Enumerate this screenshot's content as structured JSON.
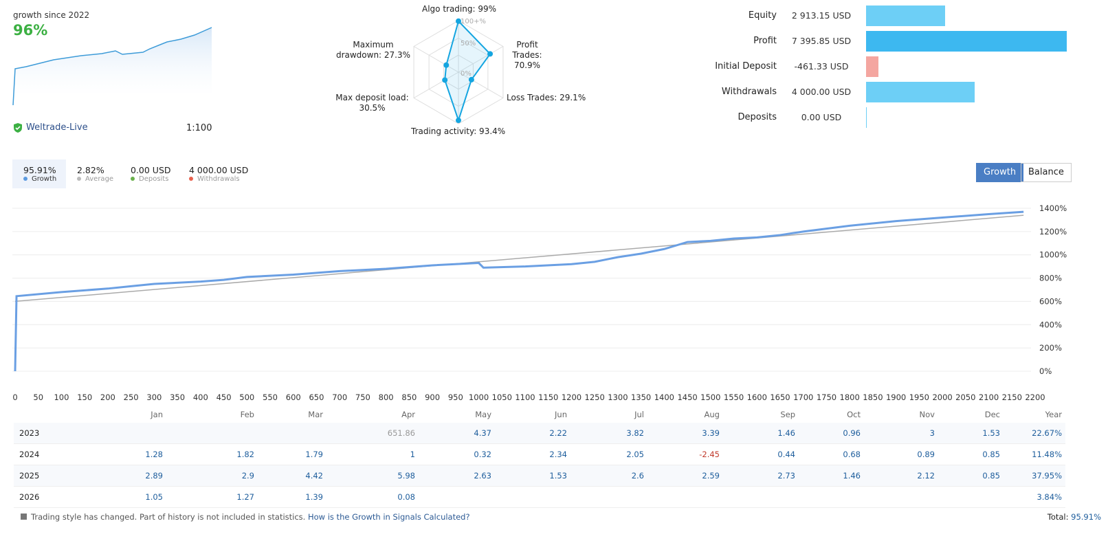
{
  "summary": {
    "growth_label": "growth since 2022",
    "growth_value": "96%",
    "broker": "Weltrade-Live",
    "leverage": "1:100"
  },
  "radar": {
    "axes": [
      {
        "label": "Algo trading: 99%",
        "value": 99
      },
      {
        "label": "Profit Trades: 70.9%",
        "value": 70.9
      },
      {
        "label": "Loss Trades: 29.1%",
        "value": 29.1
      },
      {
        "label": "Trading activity: 93.4%",
        "value": 93.4
      },
      {
        "label": "Max deposit load: 30.5%",
        "value": 30.5
      },
      {
        "label": "Maximum drawdown: 27.3%",
        "value": 27.3
      }
    ],
    "ticks": [
      "100+%",
      "50%",
      "0%"
    ]
  },
  "balance_bars": [
    {
      "label": "Equity",
      "value": "2 913.15 USD",
      "amount": 2913.15,
      "color": "#6dcff6"
    },
    {
      "label": "Profit",
      "value": "7 395.85 USD",
      "amount": 7395.85,
      "color": "#3db8f0"
    },
    {
      "label": "Initial Deposit",
      "value": "-461.33 USD",
      "amount": 461.33,
      "color": "#f4a6a0"
    },
    {
      "label": "Withdrawals",
      "value": "4 000.00 USD",
      "amount": 4000,
      "color": "#6dcff6"
    },
    {
      "label": "Deposits",
      "value": "0.00 USD",
      "amount": 0,
      "color": "#6dcff6"
    }
  ],
  "stats": [
    {
      "value": "95.91%",
      "label": "Growth",
      "color": "#5b9ae0"
    },
    {
      "value": "2.82%",
      "label": "Average",
      "color": "#bbbbbb"
    },
    {
      "value": "0.00 USD",
      "label": "Deposits",
      "color": "#6ab04c"
    },
    {
      "value": "4 000.00 USD",
      "label": "Withdrawals",
      "color": "#e8604c"
    }
  ],
  "toggle": {
    "growth": "Growth",
    "balance": "Balance"
  },
  "chart_data": {
    "type": "line",
    "x_ticks": [
      "0",
      "50",
      "100",
      "150",
      "200",
      "250",
      "300",
      "350",
      "400",
      "450",
      "500",
      "550",
      "600",
      "650",
      "700",
      "750",
      "800",
      "850",
      "900",
      "950",
      "1000",
      "1050",
      "1100",
      "1150",
      "1200",
      "1250",
      "1300",
      "1350",
      "1400",
      "1450",
      "1500",
      "1550",
      "1600",
      "1650",
      "1700",
      "1750",
      "1800",
      "1850",
      "1900",
      "1950",
      "2000",
      "2050",
      "2100",
      "2150",
      "2200"
    ],
    "y_ticks": [
      "0%",
      "200%",
      "400%",
      "600%",
      "800%",
      "1000%",
      "1200%",
      "1400%"
    ],
    "xlim": [
      0,
      2200
    ],
    "ylim": [
      0,
      1400
    ],
    "series": [
      {
        "name": "Growth",
        "color": "#6a9fe3",
        "points": [
          [
            0,
            0
          ],
          [
            3,
            645
          ],
          [
            100,
            680
          ],
          [
            200,
            710
          ],
          [
            250,
            730
          ],
          [
            300,
            750
          ],
          [
            400,
            770
          ],
          [
            450,
            785
          ],
          [
            500,
            810
          ],
          [
            600,
            830
          ],
          [
            700,
            860
          ],
          [
            800,
            880
          ],
          [
            900,
            910
          ],
          [
            1000,
            930
          ],
          [
            1010,
            890
          ],
          [
            1100,
            900
          ],
          [
            1200,
            920
          ],
          [
            1250,
            940
          ],
          [
            1300,
            980
          ],
          [
            1350,
            1010
          ],
          [
            1400,
            1050
          ],
          [
            1450,
            1110
          ],
          [
            1500,
            1120
          ],
          [
            1550,
            1140
          ],
          [
            1600,
            1150
          ],
          [
            1650,
            1170
          ],
          [
            1700,
            1200
          ],
          [
            1800,
            1250
          ],
          [
            1900,
            1290
          ],
          [
            2000,
            1320
          ],
          [
            2100,
            1350
          ],
          [
            2175,
            1370
          ]
        ]
      },
      {
        "name": "Average",
        "color": "#aaaaaa",
        "points": [
          [
            0,
            600
          ],
          [
            2175,
            1340
          ]
        ]
      }
    ]
  },
  "monthly": {
    "headers": [
      "Jan",
      "Feb",
      "Mar",
      "Apr",
      "May",
      "Jun",
      "Jul",
      "Aug",
      "Sep",
      "Oct",
      "Nov",
      "Dec",
      "Year"
    ],
    "rows": [
      {
        "year": "2023",
        "values": [
          "",
          "",
          "",
          "651.86",
          "4.37",
          "2.22",
          "3.82",
          "3.39",
          "1.46",
          "0.96",
          "3",
          "1.53",
          "22.67%"
        ]
      },
      {
        "year": "2024",
        "values": [
          "1.28",
          "1.82",
          "1.79",
          "1",
          "0.32",
          "2.34",
          "2.05",
          "-2.45",
          "0.44",
          "0.68",
          "0.89",
          "0.85",
          "11.48%"
        ]
      },
      {
        "year": "2025",
        "values": [
          "2.89",
          "2.9",
          "4.42",
          "5.98",
          "2.63",
          "1.53",
          "2.6",
          "2.59",
          "2.73",
          "1.46",
          "2.12",
          "0.85",
          "37.95%"
        ]
      },
      {
        "year": "2026",
        "values": [
          "1.05",
          "1.27",
          "1.39",
          "0.08",
          "",
          "",
          "",
          "",
          "",
          "",
          "",
          "",
          "3.84%"
        ]
      }
    ]
  },
  "footer": {
    "note": "Trading style has changed. Part of history is not included in statistics.",
    "link": "How is the Growth in Signals Calculated?",
    "total_label": "Total:",
    "total_value": "95.91%"
  }
}
